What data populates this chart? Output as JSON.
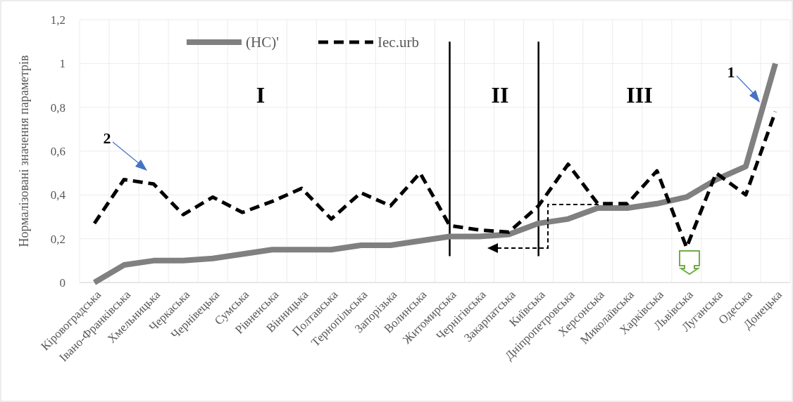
{
  "chart_data": {
    "type": "line",
    "ylabel": "Нормалізовані значення параметрів",
    "categories": [
      "Кіровоградська",
      "Івано-Франківська",
      "Хмельницька",
      "Черкаська",
      "Чернівецька",
      "Сумська",
      "Рівненська",
      "Вінницька",
      "Полтавська",
      "Тернопільська",
      "Запорізька",
      "Волинська",
      "Житомирська",
      "Чернігівська",
      "Закарпатська",
      "Київська",
      "Дніпропетровська",
      "Херсонська",
      "Миколаївська",
      "Харківська",
      "Львівська",
      "Луганська",
      "Одеська",
      "Донецька"
    ],
    "series": [
      {
        "name": "(HC)'",
        "color": "#808080",
        "line_style": "solid",
        "values": [
          0,
          0.08,
          0.1,
          0.1,
          0.11,
          0.13,
          0.15,
          0.15,
          0.15,
          0.17,
          0.17,
          0.19,
          0.21,
          0.21,
          0.22,
          0.27,
          0.29,
          0.34,
          0.34,
          0.36,
          0.39,
          0.47,
          0.53,
          1.0
        ]
      },
      {
        "name": "Iec.urb",
        "color": "#000000",
        "line_style": "dashed",
        "values": [
          0.27,
          0.47,
          0.45,
          0.31,
          0.39,
          0.32,
          0.37,
          0.43,
          0.29,
          0.41,
          0.35,
          0.5,
          0.26,
          0.24,
          0.23,
          0.35,
          0.54,
          0.36,
          0.36,
          0.51,
          0.16,
          0.5,
          0.4,
          0.78
        ]
      }
    ],
    "ylim": [
      0,
      1.2
    ],
    "yticks": [
      0,
      {
        "value": 0.2,
        "label": "0,2"
      },
      {
        "value": 0.4,
        "label": "0,4"
      },
      {
        "value": 0.6,
        "label": "0,6"
      },
      {
        "value": 0.8,
        "label": "0,8"
      },
      1,
      {
        "value": 1.2,
        "label": "1,2"
      }
    ],
    "grid": true,
    "legend": "top",
    "ref_lines": [
      {
        "axis": "x",
        "value": "Житомирська",
        "color": "#000000"
      },
      {
        "axis": "x",
        "value": "Київська",
        "color": "#000000"
      }
    ],
    "annotations": [
      "I",
      "II",
      "III",
      "1",
      "2"
    ]
  }
}
